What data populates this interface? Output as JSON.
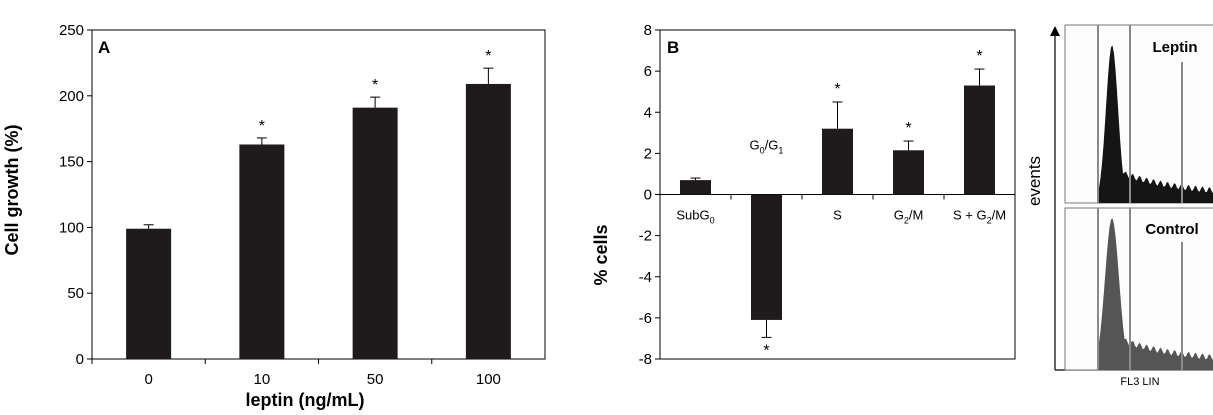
{
  "chart_data": [
    {
      "type": "bar",
      "panel_label": "A",
      "categories": [
        "0",
        "10",
        "50",
        "100"
      ],
      "values": [
        99,
        163,
        191,
        209
      ],
      "errors": [
        3,
        5,
        8,
        12
      ],
      "significant": [
        false,
        true,
        true,
        true
      ],
      "significance_marker": "*",
      "xlabel": "leptin (ng/mL)",
      "ylabel": "Cell growth (%)",
      "ylim": [
        0,
        250
      ],
      "yticks": [
        "0",
        "50",
        "100",
        "150",
        "200",
        "250"
      ],
      "grid": false,
      "bar_color": "#1f1a1b"
    },
    {
      "type": "bar",
      "panel_label": "B",
      "categories": [
        {
          "base": "SubG",
          "sub": "0"
        },
        {
          "base": "G",
          "sub": "0",
          "mid": "/G",
          "sub2": "1"
        },
        {
          "base": "S"
        },
        {
          "base": "G",
          "sub": "2",
          "mid": "/M"
        },
        {
          "base": "S + G",
          "sub": "2",
          "mid": "/M"
        }
      ],
      "values": [
        0.7,
        -6.1,
        3.2,
        2.15,
        5.3
      ],
      "errors": [
        0.1,
        0.85,
        1.3,
        0.45,
        0.8
      ],
      "significant": [
        false,
        true,
        true,
        true,
        true
      ],
      "significance_marker": "*",
      "ylabel": "% cells",
      "ylim": [
        -8,
        8
      ],
      "yticks": [
        "-8",
        "-6",
        "-4",
        "-2",
        "0",
        "2",
        "4",
        "6",
        "8"
      ],
      "grid": false,
      "bar_color": "#1f1a1b"
    }
  ],
  "flow_cytometry": {
    "y_axis_label": "events",
    "x_axis_label": "FL3 LIN",
    "panels": [
      {
        "title": "Leptin",
        "fill_color": "#151515"
      },
      {
        "title": "Control",
        "fill_color": "#555555"
      }
    ],
    "gate_color": "#8a8a8a"
  }
}
